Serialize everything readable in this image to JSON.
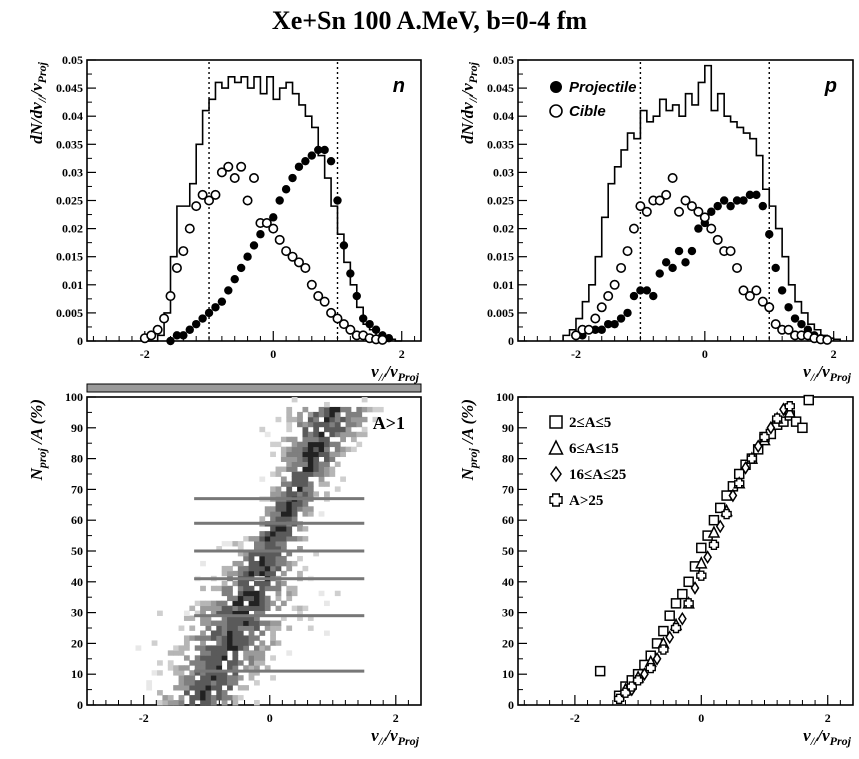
{
  "title": "Xe+Sn 100 A.MeV, b=0-4 fm",
  "chart_data": [
    {
      "id": "n",
      "type": "line",
      "tag": "n",
      "xlabel_main": "v",
      "xlabel_sub1": "//",
      "xlabel_mid": "/v",
      "xlabel_sub2": "Proj",
      "ylabel_main": "dN/dv",
      "ylabel_sub1": "//",
      "ylabel_mid": "/v",
      "ylabel_sub2": "Proj",
      "xlim": [
        -2.9,
        2.3
      ],
      "ylim": [
        0,
        0.05
      ],
      "xticks": [
        -2,
        0,
        2
      ],
      "xtick_labels": [
        "-2",
        "0",
        "2"
      ],
      "yticks": [
        0,
        0.005,
        0.01,
        0.015,
        0.02,
        0.025,
        0.03,
        0.035,
        0.04,
        0.045,
        0.05
      ],
      "ytick_labels": [
        "0",
        "0.005",
        "0.01",
        "0.015",
        "0.02",
        "0.025",
        "0.03",
        "0.035",
        "0.04",
        "0.045",
        "0.05"
      ],
      "vlines": [
        -1,
        1
      ],
      "legend": [],
      "histogram": {
        "edges": [
          -2.0,
          -1.9,
          -1.8,
          -1.7,
          -1.6,
          -1.5,
          -1.4,
          -1.3,
          -1.2,
          -1.1,
          -1.0,
          -0.9,
          -0.8,
          -0.7,
          -0.6,
          -0.5,
          -0.4,
          -0.3,
          -0.2,
          -0.1,
          0.0,
          0.1,
          0.2,
          0.3,
          0.4,
          0.5,
          0.6,
          0.7,
          0.8,
          0.9,
          1.0,
          1.1,
          1.2,
          1.3,
          1.4,
          1.5,
          1.6,
          1.7,
          1.8,
          1.9,
          2.0
        ],
        "values": [
          0,
          0,
          0.001,
          0.005,
          0.015,
          0.024,
          0.024,
          0.028,
          0.035,
          0.041,
          0.043,
          0.046,
          0.045,
          0.047,
          0.046,
          0.047,
          0.045,
          0.047,
          0.044,
          0.047,
          0.043,
          0.045,
          0.046,
          0.044,
          0.042,
          0.04,
          0.038,
          0.033,
          0.029,
          0.024,
          0.019,
          0.014,
          0.01,
          0.006,
          0.003,
          0.002,
          0.001,
          0.0005,
          0.0003,
          0
        ]
      },
      "series": [
        {
          "name": "Projectile",
          "marker": "filled-circle",
          "x": [
            -1.6,
            -1.5,
            -1.4,
            -1.3,
            -1.2,
            -1.1,
            -1.0,
            -0.9,
            -0.8,
            -0.7,
            -0.6,
            -0.5,
            -0.4,
            -0.3,
            -0.2,
            -0.1,
            0.0,
            0.1,
            0.2,
            0.3,
            0.4,
            0.5,
            0.6,
            0.7,
            0.8,
            0.9,
            1.0,
            1.1,
            1.2,
            1.3,
            1.4,
            1.5,
            1.6,
            1.7,
            1.8
          ],
          "y": [
            0,
            0.001,
            0.001,
            0.002,
            0.003,
            0.004,
            0.005,
            0.006,
            0.007,
            0.009,
            0.011,
            0.013,
            0.015,
            0.017,
            0.019,
            0.021,
            0.022,
            0.025,
            0.027,
            0.029,
            0.031,
            0.032,
            0.033,
            0.034,
            0.034,
            0.032,
            0.025,
            0.017,
            0.012,
            0.008,
            0.004,
            0.003,
            0.002,
            0.001,
            0.0005
          ]
        },
        {
          "name": "Cible",
          "marker": "open-circle",
          "x": [
            -2.0,
            -1.9,
            -1.8,
            -1.7,
            -1.6,
            -1.5,
            -1.4,
            -1.3,
            -1.2,
            -1.1,
            -1.0,
            -0.9,
            -0.8,
            -0.7,
            -0.6,
            -0.5,
            -0.4,
            -0.3,
            -0.2,
            -0.1,
            0.0,
            0.1,
            0.2,
            0.3,
            0.4,
            0.5,
            0.6,
            0.7,
            0.8,
            0.9,
            1.0,
            1.1,
            1.2,
            1.3,
            1.4,
            1.5,
            1.6,
            1.7
          ],
          "y": [
            0.0005,
            0.001,
            0.002,
            0.004,
            0.008,
            0.013,
            0.016,
            0.02,
            0.024,
            0.026,
            0.025,
            0.026,
            0.03,
            0.031,
            0.029,
            0.031,
            0.025,
            0.029,
            0.021,
            0.021,
            0.02,
            0.018,
            0.016,
            0.015,
            0.014,
            0.013,
            0.01,
            0.008,
            0.007,
            0.005,
            0.004,
            0.003,
            0.002,
            0.001,
            0.001,
            0.0005,
            0.0003,
            0.0002
          ]
        }
      ]
    },
    {
      "id": "p",
      "type": "line",
      "tag": "p",
      "xlabel_main": "v",
      "xlabel_sub1": "//",
      "xlabel_mid": "/v",
      "xlabel_sub2": "Proj",
      "ylabel_main": "dN/dv",
      "ylabel_sub1": "//",
      "ylabel_mid": "/v",
      "ylabel_sub2": "Proj",
      "xlim": [
        -2.9,
        2.3
      ],
      "ylim": [
        0,
        0.05
      ],
      "xticks": [
        -2,
        0,
        2
      ],
      "xtick_labels": [
        "-2",
        "0",
        "2"
      ],
      "yticks": [
        0,
        0.005,
        0.01,
        0.015,
        0.02,
        0.025,
        0.03,
        0.035,
        0.04,
        0.045,
        0.05
      ],
      "ytick_labels": [
        "0",
        "0.005",
        "0.01",
        "0.015",
        "0.02",
        "0.025",
        "0.03",
        "0.035",
        "0.04",
        "0.045",
        "0.05"
      ],
      "vlines": [
        -1,
        1
      ],
      "legend": [
        {
          "label": "Projectile",
          "marker": "filled-circle"
        },
        {
          "label": "Cible",
          "marker": "open-circle"
        }
      ],
      "histogram": {
        "edges": [
          -2.2,
          -2.1,
          -2.0,
          -1.9,
          -1.8,
          -1.7,
          -1.6,
          -1.5,
          -1.4,
          -1.3,
          -1.2,
          -1.1,
          -1.0,
          -0.9,
          -0.8,
          -0.7,
          -0.6,
          -0.5,
          -0.4,
          -0.3,
          -0.2,
          -0.1,
          0.0,
          0.1,
          0.2,
          0.3,
          0.4,
          0.5,
          0.6,
          0.7,
          0.8,
          0.9,
          1.0,
          1.1,
          1.2,
          1.3,
          1.4,
          1.5,
          1.6,
          1.7,
          1.8,
          1.9,
          2.0,
          2.1
        ],
        "values": [
          0.001,
          0.002,
          0.004,
          0.007,
          0.01,
          0.015,
          0.022,
          0.028,
          0.031,
          0.034,
          0.037,
          0.036,
          0.041,
          0.039,
          0.04,
          0.043,
          0.041,
          0.042,
          0.04,
          0.044,
          0.042,
          0.046,
          0.049,
          0.041,
          0.044,
          0.04,
          0.039,
          0.038,
          0.037,
          0.036,
          0.033,
          0.027,
          0.024,
          0.02,
          0.015,
          0.01,
          0.007,
          0.005,
          0.003,
          0.002,
          0.001,
          0.0005,
          0.0003
        ]
      },
      "series": [
        {
          "name": "Projectile",
          "marker": "filled-circle",
          "x": [
            -2.0,
            -1.9,
            -1.8,
            -1.7,
            -1.6,
            -1.5,
            -1.4,
            -1.3,
            -1.2,
            -1.1,
            -1.0,
            -0.9,
            -0.8,
            -0.7,
            -0.6,
            -0.5,
            -0.4,
            -0.3,
            -0.2,
            -0.1,
            0.0,
            0.1,
            0.2,
            0.3,
            0.4,
            0.5,
            0.6,
            0.7,
            0.8,
            0.9,
            1.0,
            1.1,
            1.2,
            1.3,
            1.4,
            1.5,
            1.6,
            1.7,
            1.8
          ],
          "y": [
            0.001,
            0.001,
            0.002,
            0.002,
            0.002,
            0.003,
            0.003,
            0.004,
            0.005,
            0.008,
            0.009,
            0.009,
            0.008,
            0.012,
            0.014,
            0.013,
            0.016,
            0.014,
            0.016,
            0.02,
            0.021,
            0.023,
            0.024,
            0.025,
            0.024,
            0.025,
            0.025,
            0.026,
            0.026,
            0.024,
            0.019,
            0.013,
            0.009,
            0.006,
            0.004,
            0.003,
            0.002,
            0.001,
            0.0005
          ]
        },
        {
          "name": "Cible",
          "marker": "open-circle",
          "x": [
            -2.0,
            -1.9,
            -1.8,
            -1.7,
            -1.6,
            -1.5,
            -1.4,
            -1.3,
            -1.2,
            -1.1,
            -1.0,
            -0.9,
            -0.8,
            -0.7,
            -0.6,
            -0.5,
            -0.4,
            -0.3,
            -0.2,
            -0.1,
            0.0,
            0.1,
            0.2,
            0.3,
            0.4,
            0.5,
            0.6,
            0.7,
            0.8,
            0.9,
            1.0,
            1.1,
            1.2,
            1.3,
            1.4,
            1.5,
            1.6,
            1.7,
            1.8,
            1.9
          ],
          "y": [
            0.001,
            0.002,
            0.002,
            0.004,
            0.006,
            0.008,
            0.01,
            0.013,
            0.016,
            0.02,
            0.024,
            0.023,
            0.025,
            0.025,
            0.026,
            0.029,
            0.023,
            0.025,
            0.024,
            0.023,
            0.022,
            0.02,
            0.018,
            0.016,
            0.016,
            0.013,
            0.009,
            0.008,
            0.009,
            0.007,
            0.006,
            0.003,
            0.002,
            0.002,
            0.001,
            0.001,
            0.001,
            0.0005,
            0.0003,
            0.0002
          ]
        }
      ]
    },
    {
      "id": "scatter-left",
      "type": "heatmap",
      "tag": "A>1",
      "xlabel_main": "v",
      "xlabel_sub1": "//",
      "xlabel_mid": "/v",
      "xlabel_sub2": "Proj",
      "ylabel_main": "N",
      "ylabel_sub1": "proj",
      "ylabel_mid": " /A (%)",
      "ylabel_sub2": "",
      "xlim": [
        -2.9,
        2.4
      ],
      "ylim": [
        0,
        100
      ],
      "xticks": [
        -2,
        0,
        2
      ],
      "xtick_labels": [
        "-2",
        "0",
        "2"
      ],
      "yticks": [
        0,
        10,
        20,
        30,
        40,
        50,
        60,
        70,
        80,
        90,
        100
      ],
      "ytick_labels": [
        "0",
        "10",
        "20",
        "30",
        "40",
        "50",
        "60",
        "70",
        "80",
        "90",
        "100"
      ],
      "legend": [],
      "series": []
    },
    {
      "id": "scatter-right",
      "type": "scatter",
      "tag": "",
      "xlabel_main": "v",
      "xlabel_sub1": "//",
      "xlabel_mid": "/v",
      "xlabel_sub2": "Proj",
      "ylabel_main": "N",
      "ylabel_sub1": "proj",
      "ylabel_mid": " /A (%)",
      "ylabel_sub2": "",
      "xlim": [
        -2.9,
        2.4
      ],
      "ylim": [
        0,
        100
      ],
      "xticks": [
        -2,
        0,
        2
      ],
      "xtick_labels": [
        "-2",
        "0",
        "2"
      ],
      "yticks": [
        0,
        10,
        20,
        30,
        40,
        50,
        60,
        70,
        80,
        90,
        100
      ],
      "ytick_labels": [
        "0",
        "10",
        "20",
        "30",
        "40",
        "50",
        "60",
        "70",
        "80",
        "90",
        "100"
      ],
      "legend": [
        {
          "label": "2≤A≤5",
          "marker": "open-square"
        },
        {
          "label": "6≤A≤15",
          "marker": "open-triangle"
        },
        {
          "label": "16≤A≤25",
          "marker": "open-diamond"
        },
        {
          "label": "A>25",
          "marker": "open-cross"
        }
      ],
      "series": [
        {
          "name": "2≤A≤5",
          "marker": "open-square",
          "x": [
            -1.6,
            -1.3,
            -1.2,
            -1.1,
            -1.0,
            -0.9,
            -0.8,
            -0.7,
            -0.6,
            -0.5,
            -0.4,
            -0.3,
            -0.2,
            -0.1,
            0.0,
            0.1,
            0.2,
            0.3,
            0.4,
            0.5,
            0.6,
            0.7,
            0.8,
            0.9,
            1.0,
            1.1,
            1.2,
            1.3,
            1.4,
            1.5,
            1.6,
            1.7
          ],
          "y": [
            11,
            3,
            6,
            8,
            10,
            13,
            16,
            20,
            24,
            29,
            33,
            36,
            40,
            45,
            51,
            55,
            60,
            64,
            68,
            71,
            75,
            78,
            80,
            83,
            87,
            88,
            91,
            92,
            94,
            92,
            90,
            99
          ]
        },
        {
          "name": "6≤A≤15",
          "marker": "open-triangle",
          "x": [
            -1.2,
            -1.0,
            -0.8,
            -0.6,
            -0.4,
            -0.2,
            0.0,
            0.2,
            0.4,
            0.6,
            0.8,
            1.0,
            1.2,
            1.4
          ],
          "y": [
            5,
            9,
            14,
            20,
            26,
            33,
            46,
            56,
            63,
            72,
            80,
            86,
            93,
            95
          ]
        },
        {
          "name": "16≤A≤25",
          "marker": "open-diamond",
          "x": [
            -1.1,
            -0.9,
            -0.7,
            -0.5,
            -0.3,
            -0.1,
            0.1,
            0.3,
            0.5,
            0.7,
            0.9,
            1.1,
            1.3
          ],
          "y": [
            5,
            10,
            15,
            22,
            28,
            38,
            48,
            58,
            68,
            77,
            84,
            90,
            96
          ]
        },
        {
          "name": "A>25",
          "marker": "open-cross",
          "x": [
            -1.3,
            -1.2,
            -1.1,
            -1.0,
            -0.8,
            -0.6,
            -0.4,
            -0.2,
            0.0,
            0.2,
            0.4,
            0.6,
            0.8,
            1.0,
            1.2,
            1.4
          ],
          "y": [
            2,
            4,
            6,
            8,
            12,
            18,
            25,
            33,
            42,
            52,
            62,
            72,
            80,
            87,
            93,
            97
          ]
        }
      ]
    }
  ]
}
